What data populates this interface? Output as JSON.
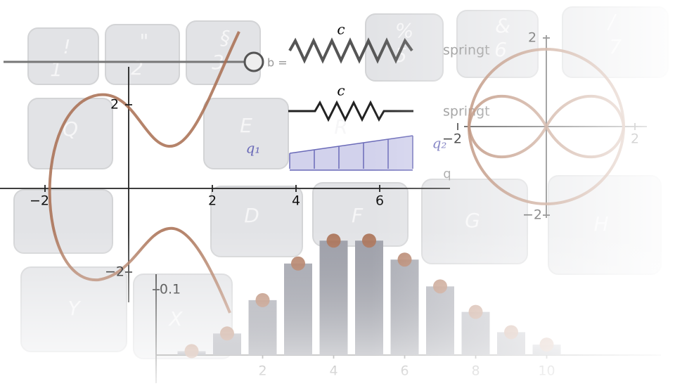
{
  "keys": [
    "!",
    "1",
    "\"",
    "2",
    "§",
    "3",
    "%",
    "5",
    "&",
    "6",
    "/",
    "7",
    "Q",
    "E",
    "R",
    "D",
    "F",
    "G",
    "H",
    "Y",
    "X"
  ],
  "slider": {
    "label": "b ="
  },
  "springs": [
    {
      "constant": "c",
      "label": "springt"
    },
    {
      "constant": "c",
      "label": "springt"
    }
  ],
  "load": {
    "left": "q₁",
    "right": "q₂",
    "label": "q"
  },
  "left_plot": {
    "xticks": [
      {
        "value": -2,
        "label": "−2"
      },
      2,
      4,
      6
    ],
    "yticks": [
      2,
      {
        "value": -2,
        "label": "−2"
      }
    ]
  },
  "right_plot": {
    "xticks": [
      {
        "value": -2,
        "label": "−2"
      },
      2
    ],
    "yticks": [
      2,
      {
        "value": -2,
        "label": "−2"
      }
    ]
  },
  "bar_plot": {
    "x": [
      0,
      1,
      2,
      3,
      4,
      5,
      6,
      7,
      8,
      9,
      10
    ],
    "values": [
      0.006,
      0.033,
      0.084,
      0.14,
      0.175,
      0.175,
      0.146,
      0.105,
      0.066,
      0.035,
      0.016
    ],
    "xlim": [
      -1,
      13
    ],
    "ylim": [
      0,
      0.2
    ],
    "xticks": [
      2,
      4,
      6,
      8,
      10
    ],
    "yticks": [
      0.1
    ]
  }
}
